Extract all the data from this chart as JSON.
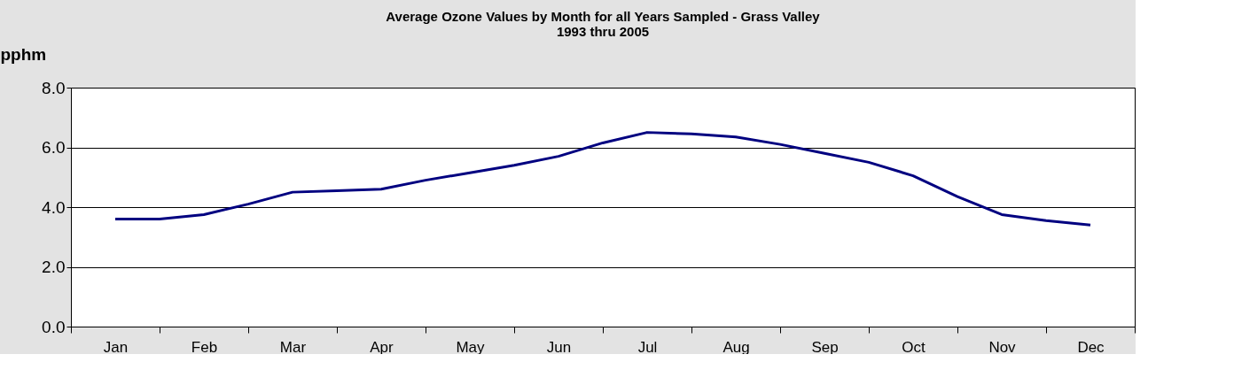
{
  "chart_data": {
    "type": "line",
    "title": [
      "Average Ozone Values by Month for all Years Sampled - Grass Valley",
      "1993 thru 2005"
    ],
    "ylabel": "pphm",
    "categories": [
      "Jan",
      null,
      "Feb",
      null,
      "Mar",
      null,
      "Apr",
      null,
      "May",
      null,
      "Jun",
      null,
      "Jul",
      null,
      "Aug",
      null,
      "Sep",
      null,
      "Oct",
      null,
      "Nov",
      null,
      "Dec"
    ],
    "series": [
      {
        "color": "#000080",
        "values": [
          3.6,
          3.6,
          3.75,
          4.1,
          4.5,
          4.55,
          4.6,
          4.9,
          5.15,
          5.4,
          5.7,
          6.15,
          6.5,
          6.45,
          6.35,
          6.1,
          5.8,
          5.5,
          5.05,
          4.35,
          3.75,
          3.55,
          3.4
        ]
      }
    ],
    "ylim": [
      0,
      8
    ],
    "yticks": [
      {
        "value": 0,
        "label": "0.0"
      },
      {
        "value": 2,
        "label": "2.0"
      },
      {
        "value": 4,
        "label": "4.0"
      },
      {
        "value": 6,
        "label": "6.0"
      },
      {
        "value": 8,
        "label": "8.0"
      }
    ],
    "grid": "y",
    "marker": "none",
    "line_style": "solid"
  }
}
